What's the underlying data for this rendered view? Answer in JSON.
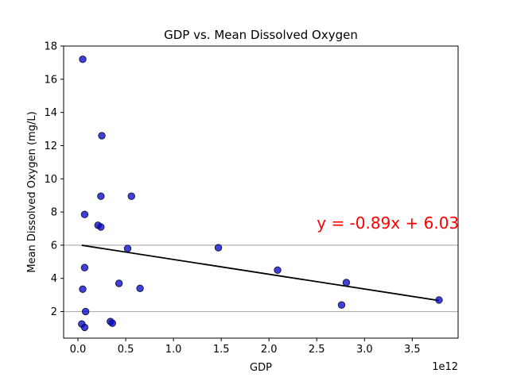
{
  "chart_data": {
    "type": "scatter",
    "title": "GDP vs. Mean Dissolved Oxygen",
    "xlabel": "GDP",
    "ylabel": "Mean Dissolved Oxygen (mg/L)",
    "x_offset_label": "1e12",
    "xlim": [
      -0.15,
      3.98
    ],
    "ylim": [
      0.4,
      18.0
    ],
    "x_ticks": [
      0.0,
      0.5,
      1.0,
      1.5,
      2.0,
      2.5,
      3.0,
      3.5
    ],
    "x_tick_labels": [
      "0.0",
      "0.5",
      "1.0",
      "1.5",
      "2.0",
      "2.5",
      "3.0",
      "3.5"
    ],
    "y_ticks": [
      2,
      4,
      6,
      8,
      10,
      12,
      14,
      16,
      18
    ],
    "y_tick_labels": [
      "2",
      "4",
      "6",
      "8",
      "10",
      "12",
      "14",
      "16",
      "18"
    ],
    "horizontal_reference_lines": [
      2,
      6
    ],
    "point_color": "#0000cc",
    "point_edge_color": "#1a1a4d",
    "line_color": "#000000",
    "annotation_color": "#ff0000",
    "points": [
      {
        "x": 0.05,
        "y": 17.2
      },
      {
        "x": 0.25,
        "y": 12.6
      },
      {
        "x": 0.24,
        "y": 8.95
      },
      {
        "x": 0.56,
        "y": 8.95
      },
      {
        "x": 0.07,
        "y": 7.85
      },
      {
        "x": 0.21,
        "y": 7.2
      },
      {
        "x": 0.24,
        "y": 7.1
      },
      {
        "x": 0.52,
        "y": 5.8
      },
      {
        "x": 1.47,
        "y": 5.85
      },
      {
        "x": 0.07,
        "y": 4.65
      },
      {
        "x": 2.09,
        "y": 4.5
      },
      {
        "x": 2.81,
        "y": 3.75
      },
      {
        "x": 0.43,
        "y": 3.7
      },
      {
        "x": 0.05,
        "y": 3.35
      },
      {
        "x": 0.65,
        "y": 3.4
      },
      {
        "x": 2.76,
        "y": 2.4
      },
      {
        "x": 3.78,
        "y": 2.7
      },
      {
        "x": 0.08,
        "y": 2.0
      },
      {
        "x": 0.34,
        "y": 1.4
      },
      {
        "x": 0.36,
        "y": 1.3
      },
      {
        "x": 0.04,
        "y": 1.25
      },
      {
        "x": 0.07,
        "y": 1.05
      }
    ],
    "regression": {
      "slope": -0.89,
      "intercept": 6.03,
      "x_start": 0.04,
      "x_end": 3.78,
      "equation_label": "y = -0.89x + 6.03",
      "label_position": {
        "x": 2.5,
        "y": 7.0
      }
    }
  }
}
